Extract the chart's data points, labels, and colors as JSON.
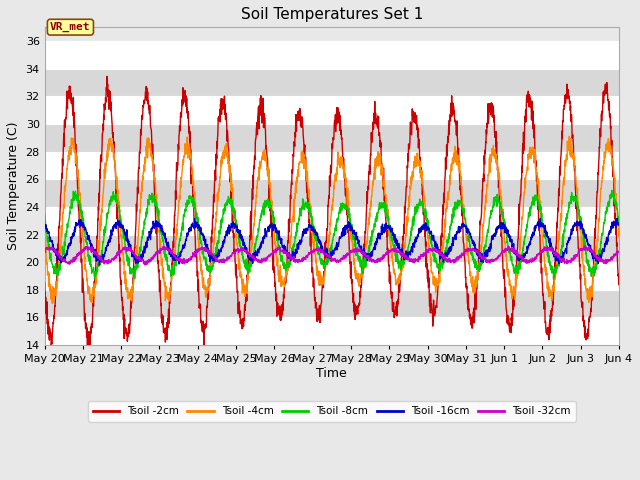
{
  "title": "Soil Temperatures Set 1",
  "xlabel": "Time",
  "ylabel": "Soil Temperature (C)",
  "ylim": [
    14,
    37
  ],
  "yticks": [
    14,
    16,
    18,
    20,
    22,
    24,
    26,
    28,
    30,
    32,
    34,
    36
  ],
  "num_days": 15,
  "label_annotation": "VR_met",
  "series": [
    {
      "label": "Tsoil -2cm",
      "color": "#cc0000",
      "amplitude": 8.0,
      "base": 23.5,
      "phase_shift": 0.0,
      "trend": 0.0,
      "noise": 0.4
    },
    {
      "label": "Tsoil -4cm",
      "color": "#ff8800",
      "amplitude": 5.0,
      "base": 23.0,
      "phase_shift": 0.07,
      "trend": 0.0,
      "noise": 0.3
    },
    {
      "label": "Tsoil -8cm",
      "color": "#00cc00",
      "amplitude": 2.5,
      "base": 22.0,
      "phase_shift": 0.16,
      "trend": 0.0,
      "noise": 0.2
    },
    {
      "label": "Tsoil -16cm",
      "color": "#0000cc",
      "amplitude": 1.2,
      "base": 21.5,
      "phase_shift": 0.28,
      "trend": 0.0,
      "noise": 0.15
    },
    {
      "label": "Tsoil -32cm",
      "color": "#cc00cc",
      "amplitude": 0.45,
      "base": 20.5,
      "phase_shift": 0.48,
      "trend": 0.0,
      "noise": 0.08
    }
  ],
  "tick_labels": [
    "May 20",
    "May 21",
    "May 22",
    "May 23",
    "May 24",
    "May 25",
    "May 26",
    "May 27",
    "May 28",
    "May 29",
    "May 30",
    "May 31",
    "Jun 1",
    "Jun 2",
    "Jun 3",
    "Jun 4"
  ],
  "fig_bg_color": "#e8e8e8",
  "plot_bg_color": "#e8e8e8",
  "band_color_light": "#ffffff",
  "band_color_dark": "#d8d8d8",
  "title_fontsize": 11,
  "label_fontsize": 9,
  "tick_fontsize": 8,
  "annotation_fontsize": 8
}
